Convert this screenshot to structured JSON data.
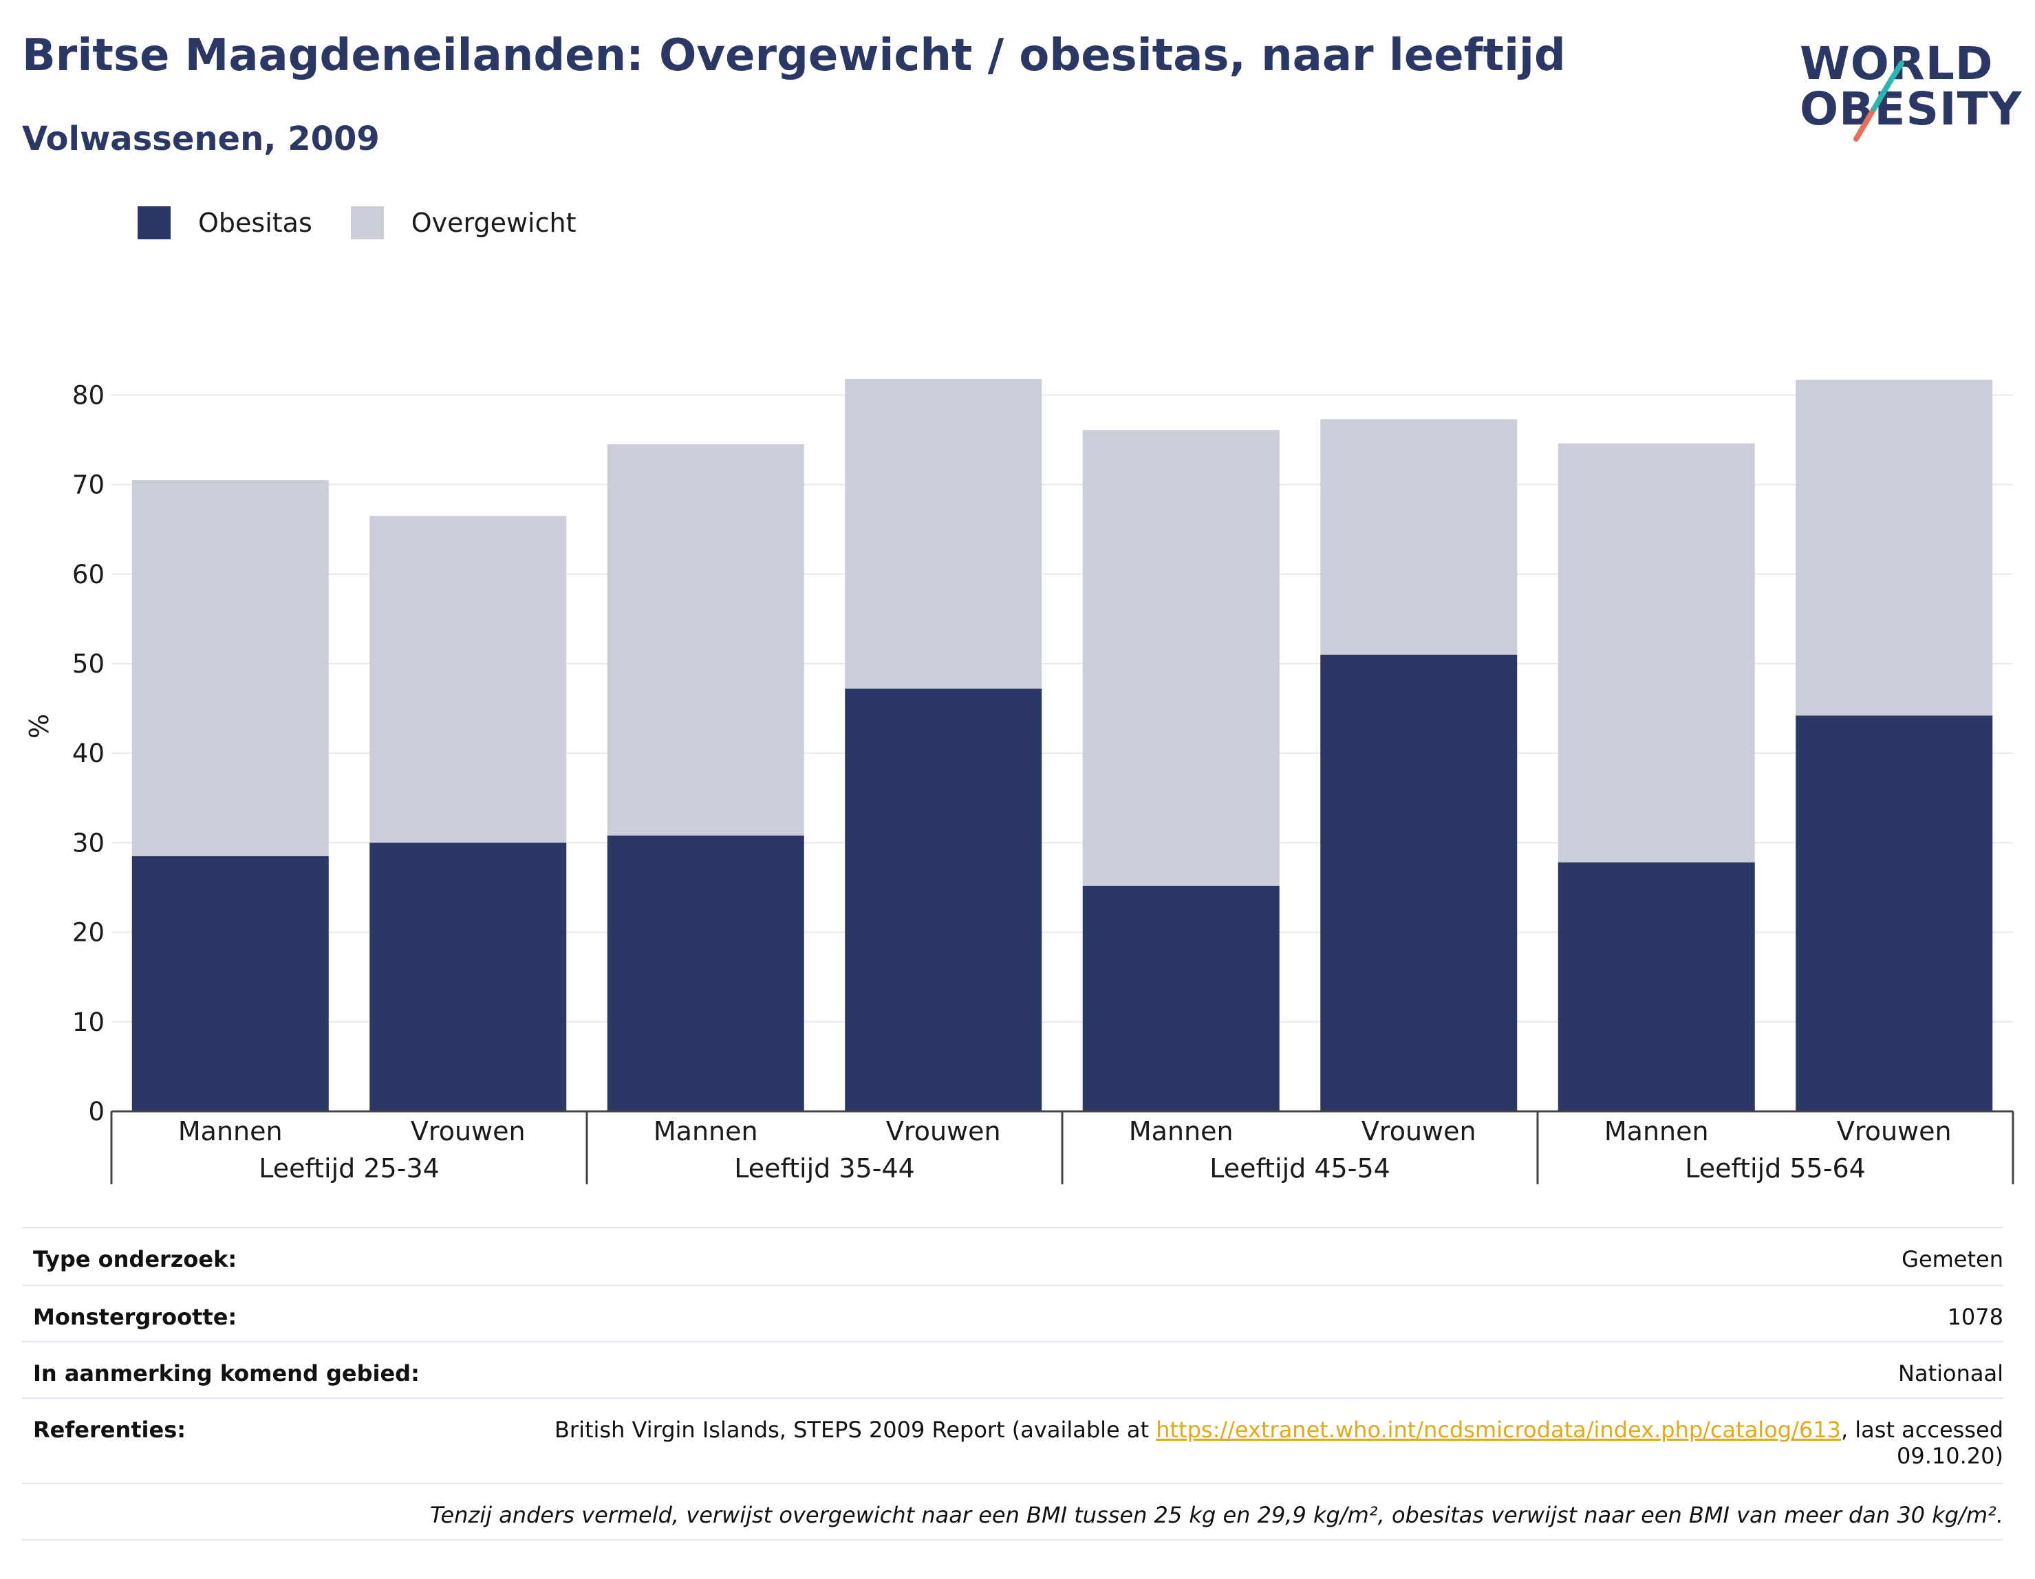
{
  "header": {
    "title": "Britse Maagdeneilanden: Overgewicht / obesitas, naar leeftijd",
    "subtitle": "Volwassenen, 2009"
  },
  "logo": {
    "line1": "WORLD",
    "line2": "OBESITY",
    "colors": {
      "text": "#2b3764",
      "slash_top": "#2bb5b0",
      "slash_bottom": "#e8705a"
    }
  },
  "legend": [
    {
      "label": "Obesitas",
      "color": "#2b3764"
    },
    {
      "label": "Overgewicht",
      "color": "#cbcdd9"
    }
  ],
  "chart_data": {
    "type": "bar",
    "stacked": true,
    "ylabel": "%",
    "ylim": [
      0,
      85
    ],
    "yticks": [
      0,
      10,
      20,
      30,
      40,
      50,
      60,
      70,
      80
    ],
    "grid": true,
    "legend_position": "top-left",
    "groups": [
      "Leeftijd 25-34",
      "Leeftijd 35-44",
      "Leeftijd 45-54",
      "Leeftijd 55-64"
    ],
    "categories": [
      "Mannen",
      "Vrouwen",
      "Mannen",
      "Vrouwen",
      "Mannen",
      "Vrouwen",
      "Mannen",
      "Vrouwen"
    ],
    "series": [
      {
        "name": "Obesitas",
        "color": "#2b3764",
        "values": [
          28.5,
          30.0,
          30.8,
          47.2,
          25.2,
          51.0,
          27.8,
          44.2
        ]
      },
      {
        "name": "Overgewicht",
        "color": "#cbcdd9",
        "values": [
          42.0,
          36.5,
          43.7,
          34.6,
          50.9,
          26.3,
          46.8,
          37.5
        ]
      }
    ]
  },
  "info": {
    "rows": [
      {
        "label": "Type onderzoek:",
        "value": "Gemeten"
      },
      {
        "label": "Monstergrootte:",
        "value": "1078"
      },
      {
        "label": "In aanmerking komend gebied:",
        "value": "Nationaal"
      }
    ],
    "reference": {
      "label": "Referenties:",
      "text_before": "British Virgin Islands, STEPS 2009 Report (available at ",
      "link": "https://extranet.who.int/ncdsmicrodata/index.php/catalog/613",
      "text_after": ", last accessed",
      "text_line2": "09.10.20)"
    },
    "note": "Tenzij anders vermeld, verwijst overgewicht naar een BMI tussen 25 kg en 29,9 kg/m², obesitas verwijst naar een BMI van meer dan 30 kg/m²."
  }
}
